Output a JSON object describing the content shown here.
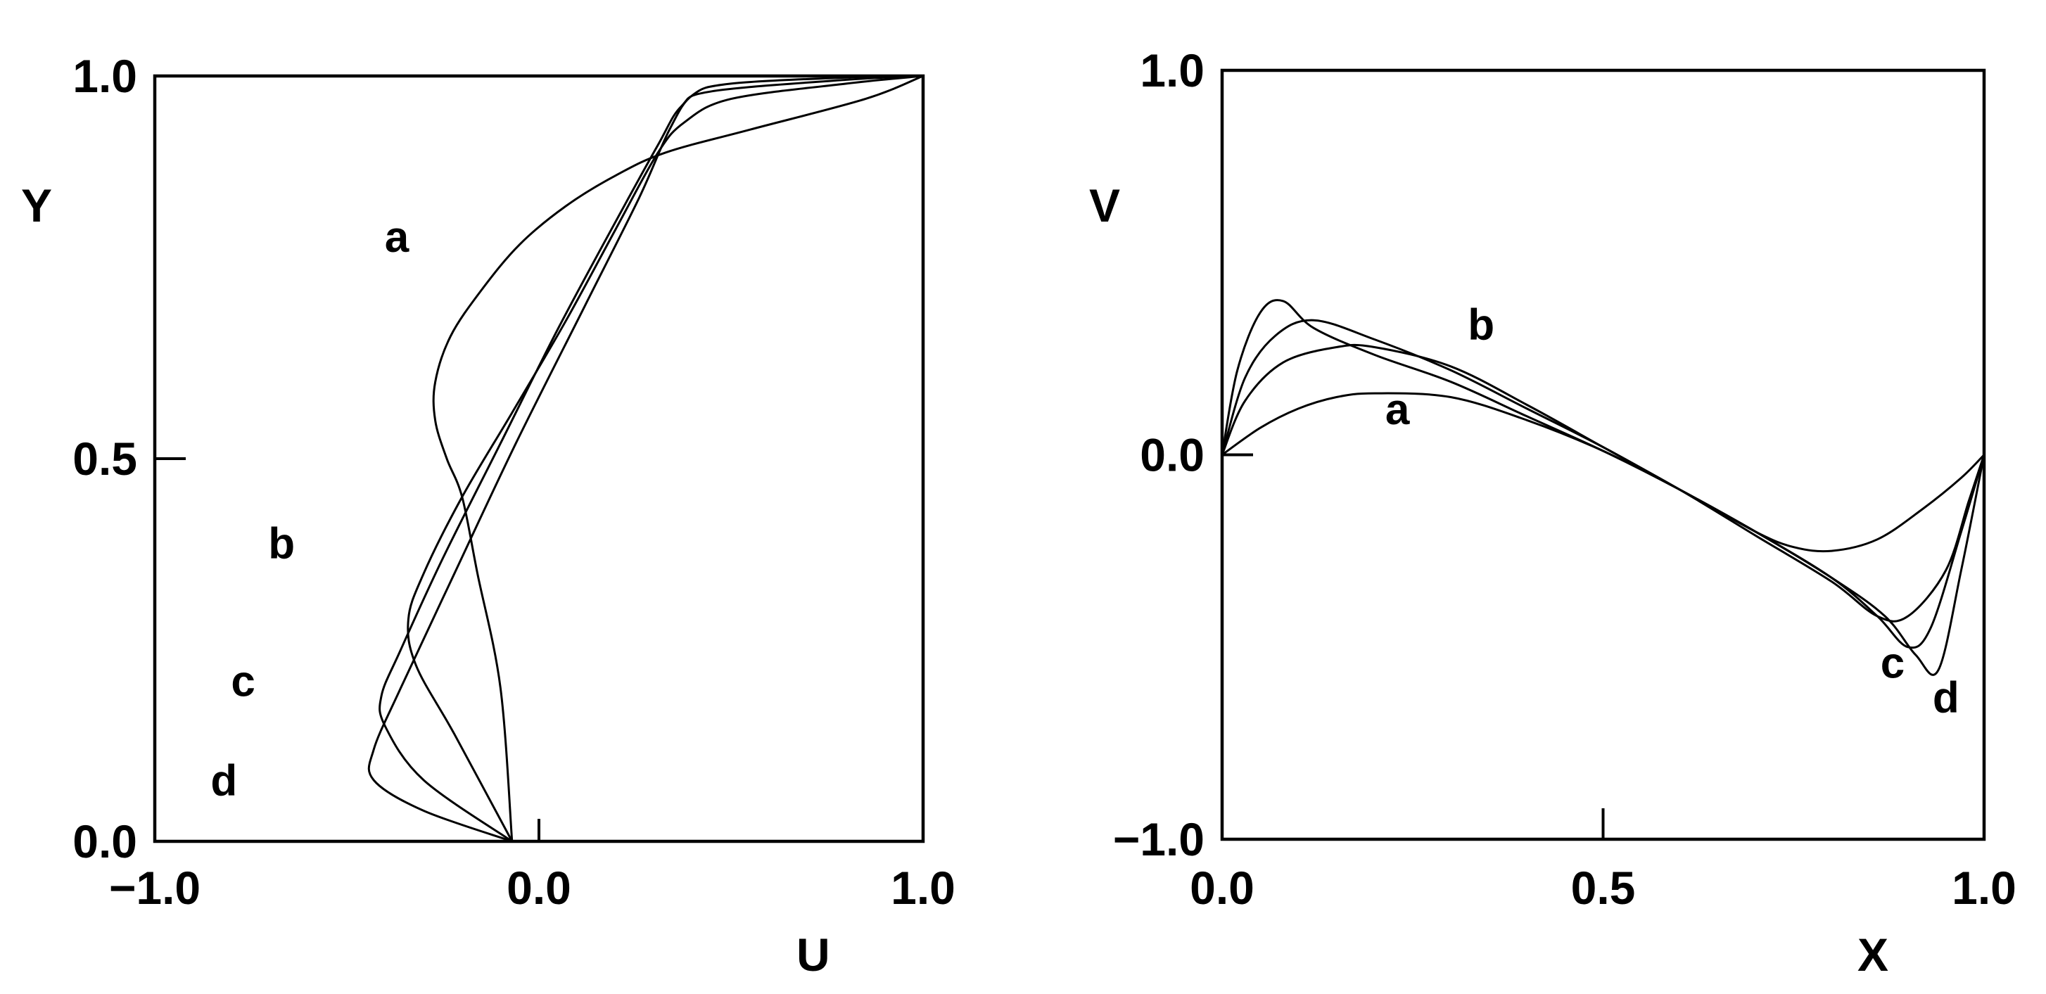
{
  "chart_data": [
    {
      "type": "line",
      "xlabel": "U",
      "ylabel": "Y",
      "xlim": [
        -1.0,
        1.0
      ],
      "ylim": [
        0.0,
        1.0
      ],
      "x_tick_labels": [
        "−1.0",
        "0.0",
        "1.0"
      ],
      "y_tick_labels": [
        "0.0",
        "0.5",
        "1.0"
      ],
      "series": [
        {
          "name": "a",
          "x": [
            -0.07,
            -0.1,
            -0.16,
            -0.2,
            -0.24,
            -0.27,
            -0.27,
            -0.23,
            -0.15,
            -0.05,
            0.07,
            0.2,
            0.33,
            0.55,
            0.85,
            1.0
          ],
          "y": [
            0.0,
            0.2,
            0.35,
            0.45,
            0.5,
            0.55,
            0.6,
            0.66,
            0.72,
            0.78,
            0.83,
            0.87,
            0.9,
            0.93,
            0.97,
            1.0
          ]
        },
        {
          "name": "b",
          "x": [
            -0.07,
            -0.22,
            -0.32,
            -0.34,
            -0.3,
            -0.2,
            -0.07,
            0.07,
            0.2,
            0.31,
            0.38,
            0.5,
            0.8,
            1.0
          ],
          "y": [
            0.0,
            0.14,
            0.23,
            0.29,
            0.35,
            0.45,
            0.56,
            0.68,
            0.8,
            0.9,
            0.94,
            0.97,
            0.99,
            1.0
          ]
        },
        {
          "name": "c",
          "x": [
            -0.07,
            -0.3,
            -0.4,
            -0.41,
            -0.36,
            -0.25,
            -0.1,
            0.05,
            0.2,
            0.31,
            0.37,
            0.45,
            0.8,
            1.0
          ],
          "y": [
            0.0,
            0.08,
            0.15,
            0.19,
            0.25,
            0.37,
            0.52,
            0.67,
            0.81,
            0.91,
            0.96,
            0.98,
            0.995,
            1.0
          ]
        },
        {
          "name": "d",
          "x": [
            -0.07,
            -0.3,
            -0.43,
            -0.43,
            -0.36,
            -0.22,
            -0.06,
            0.12,
            0.26,
            0.34,
            0.4,
            0.5,
            0.8,
            1.0
          ],
          "y": [
            0.0,
            0.04,
            0.08,
            0.12,
            0.2,
            0.35,
            0.52,
            0.7,
            0.84,
            0.93,
            0.975,
            0.99,
            0.998,
            1.0
          ]
        }
      ],
      "curve_labels": [
        {
          "text": "a",
          "x": -0.37,
          "y": 0.77
        },
        {
          "text": "b",
          "x": -0.67,
          "y": 0.37
        },
        {
          "text": "c",
          "x": -0.77,
          "y": 0.19
        },
        {
          "text": "d",
          "x": -0.82,
          "y": 0.06
        }
      ]
    },
    {
      "type": "line",
      "xlabel": "X",
      "ylabel": "V",
      "xlim": [
        0.0,
        1.0
      ],
      "ylim": [
        -1.0,
        1.0
      ],
      "x_tick_labels": [
        "0.0",
        "0.5",
        "1.0"
      ],
      "y_tick_labels": [
        "−1.0",
        "0.0",
        "1.0"
      ],
      "series": [
        {
          "name": "a",
          "x": [
            0.0,
            0.05,
            0.1,
            0.15,
            0.2,
            0.3,
            0.4,
            0.5,
            0.6,
            0.7,
            0.75,
            0.8,
            0.86,
            0.92,
            0.97,
            1.0
          ],
          "y": [
            0.0,
            0.07,
            0.12,
            0.15,
            0.16,
            0.15,
            0.09,
            0.01,
            -0.09,
            -0.2,
            -0.24,
            -0.25,
            -0.22,
            -0.14,
            -0.06,
            0.0
          ]
        },
        {
          "name": "b",
          "x": [
            0.0,
            0.03,
            0.08,
            0.15,
            0.2,
            0.3,
            0.4,
            0.5,
            0.6,
            0.7,
            0.8,
            0.86,
            0.9,
            0.95,
            0.98,
            1.0
          ],
          "y": [
            0.0,
            0.14,
            0.24,
            0.28,
            0.28,
            0.23,
            0.13,
            0.02,
            -0.09,
            -0.21,
            -0.33,
            -0.42,
            -0.42,
            -0.3,
            -0.12,
            0.0
          ]
        },
        {
          "name": "c",
          "x": [
            0.0,
            0.03,
            0.07,
            0.12,
            0.2,
            0.3,
            0.4,
            0.5,
            0.6,
            0.7,
            0.8,
            0.86,
            0.9,
            0.93,
            0.97,
            1.0
          ],
          "y": [
            0.0,
            0.2,
            0.31,
            0.35,
            0.3,
            0.22,
            0.12,
            0.02,
            -0.09,
            -0.2,
            -0.32,
            -0.42,
            -0.5,
            -0.45,
            -0.2,
            0.0
          ]
        },
        {
          "name": "d",
          "x": [
            0.0,
            0.02,
            0.05,
            0.08,
            0.12,
            0.2,
            0.3,
            0.4,
            0.5,
            0.6,
            0.7,
            0.8,
            0.87,
            0.91,
            0.94,
            0.97,
            1.0
          ],
          "y": [
            0.0,
            0.22,
            0.37,
            0.4,
            0.33,
            0.26,
            0.19,
            0.1,
            0.01,
            -0.09,
            -0.2,
            -0.32,
            -0.42,
            -0.52,
            -0.56,
            -0.3,
            0.0
          ]
        }
      ],
      "curve_labels": [
        {
          "text": "b",
          "x": 0.34,
          "y": 0.3
        },
        {
          "text": "a",
          "x": 0.23,
          "y": 0.08
        },
        {
          "text": "c",
          "x": 0.88,
          "y": -0.58
        },
        {
          "text": "d",
          "x": 0.95,
          "y": -0.67
        }
      ]
    }
  ]
}
